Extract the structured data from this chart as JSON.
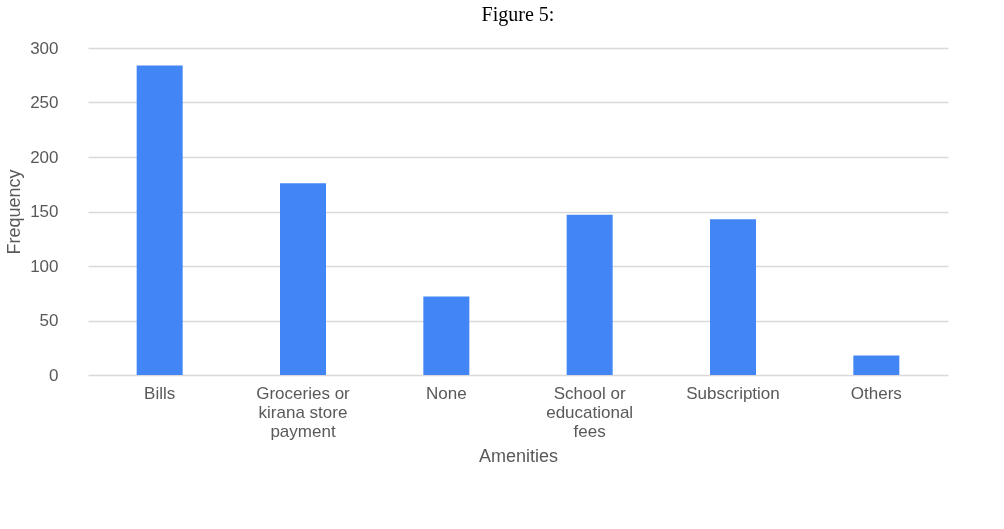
{
  "chart_data": {
    "type": "bar",
    "title": "Figure 5:",
    "xlabel": "Amenities",
    "ylabel": "Frequency",
    "categories": [
      "Bills",
      "Groceries or kirana store payment",
      "None",
      "School or educational fees",
      "Subscription",
      "Others"
    ],
    "values": [
      284,
      176,
      72,
      147,
      143,
      18
    ],
    "color": "#4285f4",
    "ylim": [
      0,
      300
    ],
    "yticks": [
      0,
      50,
      100,
      150,
      200,
      250,
      300
    ],
    "grid": "y"
  }
}
